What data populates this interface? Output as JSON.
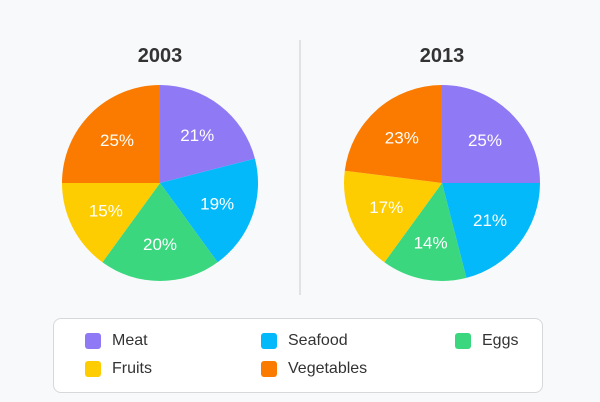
{
  "colors": {
    "Meat": "#8f79f4",
    "Seafood": "#03b9fa",
    "Eggs": "#3ad77f",
    "Fruits": "#fdcd02",
    "Vegetables": "#fa7b00",
    "divider": "#d9dbe0"
  },
  "chart_data": [
    {
      "type": "pie",
      "title": "2003",
      "categories": [
        "Meat",
        "Seafood",
        "Eggs",
        "Fruits",
        "Vegetables"
      ],
      "values": [
        21,
        19,
        20,
        15,
        25
      ],
      "labels": [
        "21%",
        "19%",
        "20%",
        "15%",
        "25%"
      ],
      "legend": "bottom"
    },
    {
      "type": "pie",
      "title": "2013",
      "categories": [
        "Meat",
        "Seafood",
        "Eggs",
        "Fruits",
        "Vegetables"
      ],
      "values": [
        25,
        21,
        14,
        17,
        23
      ],
      "labels": [
        "25%",
        "21%",
        "14%",
        "17%",
        "23%"
      ],
      "legend": "bottom"
    }
  ],
  "legend": {
    "items": [
      {
        "label": "Meat",
        "color": "#8f79f4"
      },
      {
        "label": "Seafood",
        "color": "#03b9fa"
      },
      {
        "label": "Eggs",
        "color": "#3ad77f"
      },
      {
        "label": "Fruits",
        "color": "#fdcd02"
      },
      {
        "label": "Vegetables",
        "color": "#fa7b00"
      }
    ]
  }
}
